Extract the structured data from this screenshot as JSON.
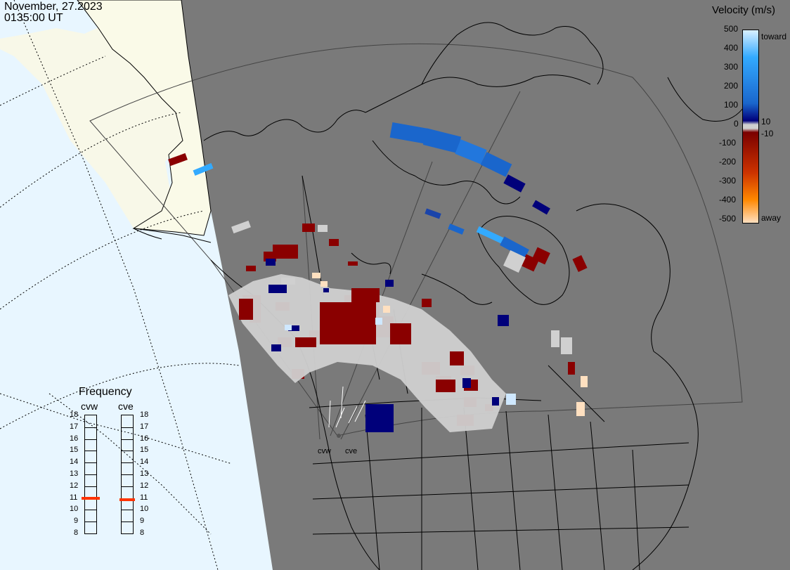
{
  "header": {
    "date": "November, 27.2023",
    "time": "0135:00 UT"
  },
  "legend": {
    "title": "Velocity (m/s)",
    "ticks": [
      "500",
      "400",
      "300",
      "200",
      "100",
      "10",
      "0",
      "-10",
      "-100",
      "-200",
      "-300",
      "-400",
      "-500"
    ],
    "toward_label": "toward",
    "away_label": "away",
    "colors": {
      "toward_max": "#d9f0ff",
      "toward_high": "#33aaff",
      "toward_mid": "#1a66cc",
      "toward_low": "#00007a",
      "zero": "#d0d0d0",
      "away_low": "#7a0000",
      "away_mid": "#cc3300",
      "away_high": "#ff8800",
      "away_max": "#ffe0c0"
    }
  },
  "frequency": {
    "title": "Frequency",
    "radars": [
      "cvw",
      "cve"
    ],
    "scale": [
      "18",
      "17",
      "16",
      "15",
      "14",
      "13",
      "12",
      "11",
      "10",
      "9",
      "8"
    ],
    "scale_min": 8,
    "scale_max": 18,
    "cvw_value": 10.9,
    "cve_value": 10.8,
    "marker_color": "#ff3300"
  },
  "radar_sites": {
    "west": "cvw",
    "east": "cve"
  },
  "map_colors": {
    "daylight": "#f8f8e8",
    "day_ocean": "#e8f6ff",
    "night": "#7a7a7a",
    "ground_scatter": "#d0d0d0"
  }
}
